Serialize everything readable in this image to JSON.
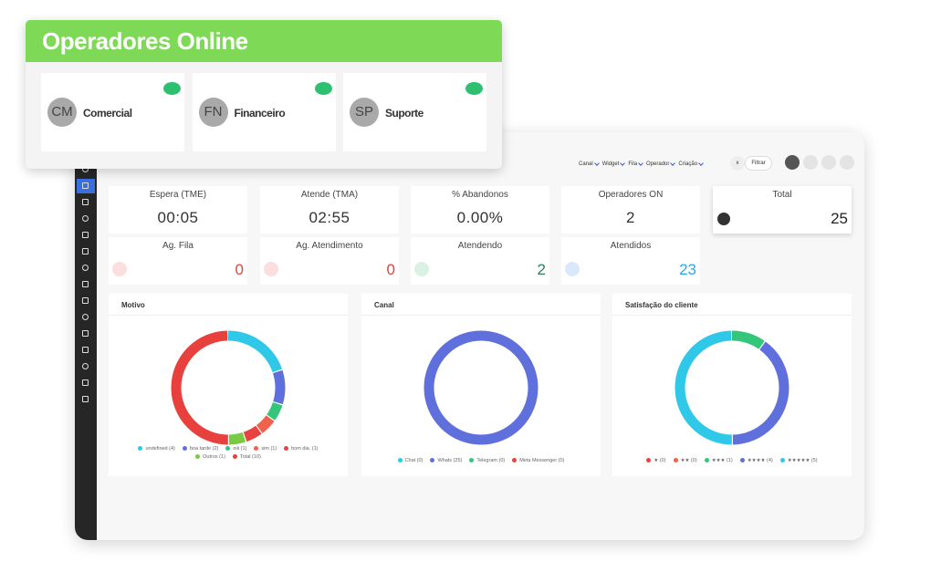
{
  "operators_panel": {
    "title": "Operadores Online",
    "operators": [
      {
        "initials": "CM",
        "name": "Comercial"
      },
      {
        "initials": "FN",
        "name": "Financeiro"
      },
      {
        "initials": "SP",
        "name": "Suporte"
      }
    ]
  },
  "dashboard": {
    "filters": [
      "Canal",
      "Widget",
      "Fila",
      "Operador",
      "Criação"
    ],
    "clear": "x",
    "filter_button": "Filtrar",
    "stats": [
      {
        "label": "Espera (TME)",
        "value": "00:05"
      },
      {
        "label": "Atende (TMA)",
        "value": "02:55"
      },
      {
        "label": "% Abandonos",
        "value": "0.00%"
      },
      {
        "label": "Operadores ON",
        "value": 2
      },
      {
        "label": "Total",
        "value": 25
      }
    ],
    "queue_stats": [
      {
        "label": "Ag. Fila",
        "value": 0,
        "color": "#e0433f"
      },
      {
        "label": "Ag. Atendimento",
        "value": 0,
        "color": "#e0433f"
      },
      {
        "label": "Atendendo",
        "value": 2,
        "color": "#2e7d57"
      },
      {
        "label": "Atendidos",
        "value": 23,
        "color": "#2aa9e0"
      }
    ]
  },
  "chart_data": [
    {
      "type": "pie",
      "donut": true,
      "title": "Motivo",
      "categories": [
        "undefined (4)",
        "boa tarde (2)",
        "oiii (1)",
        "sim (1)",
        "bom dia. (1)",
        "Outros (1)",
        "Total (10)"
      ],
      "values": [
        4,
        2,
        1,
        1,
        1,
        1,
        10
      ],
      "colors": [
        "#2fc8e8",
        "#5f6fdc",
        "#34c77b",
        "#f0624d",
        "#e8433f",
        "#7ac943",
        "#e8403c"
      ]
    },
    {
      "type": "pie",
      "donut": true,
      "title": "Canal",
      "categories": [
        "Chat (0)",
        "Whats (25)",
        "Telegram (0)",
        "Meta Messenger (0)"
      ],
      "values": [
        0,
        25,
        0,
        0
      ],
      "colors": [
        "#2fc8e8",
        "#5f6fdc",
        "#34c77b",
        "#e8433f"
      ]
    },
    {
      "type": "pie",
      "donut": true,
      "title": "Satisfação do cliente",
      "categories": [
        "★ (0)",
        "★★ (0)",
        "★★★ (1)",
        "★★★★ (4)",
        "★★★★★ (5)"
      ],
      "values": [
        0,
        0,
        1,
        4,
        5
      ],
      "colors": [
        "#e8433f",
        "#f0624d",
        "#34c77b",
        "#5f6fdc",
        "#2fc8e8"
      ]
    }
  ]
}
